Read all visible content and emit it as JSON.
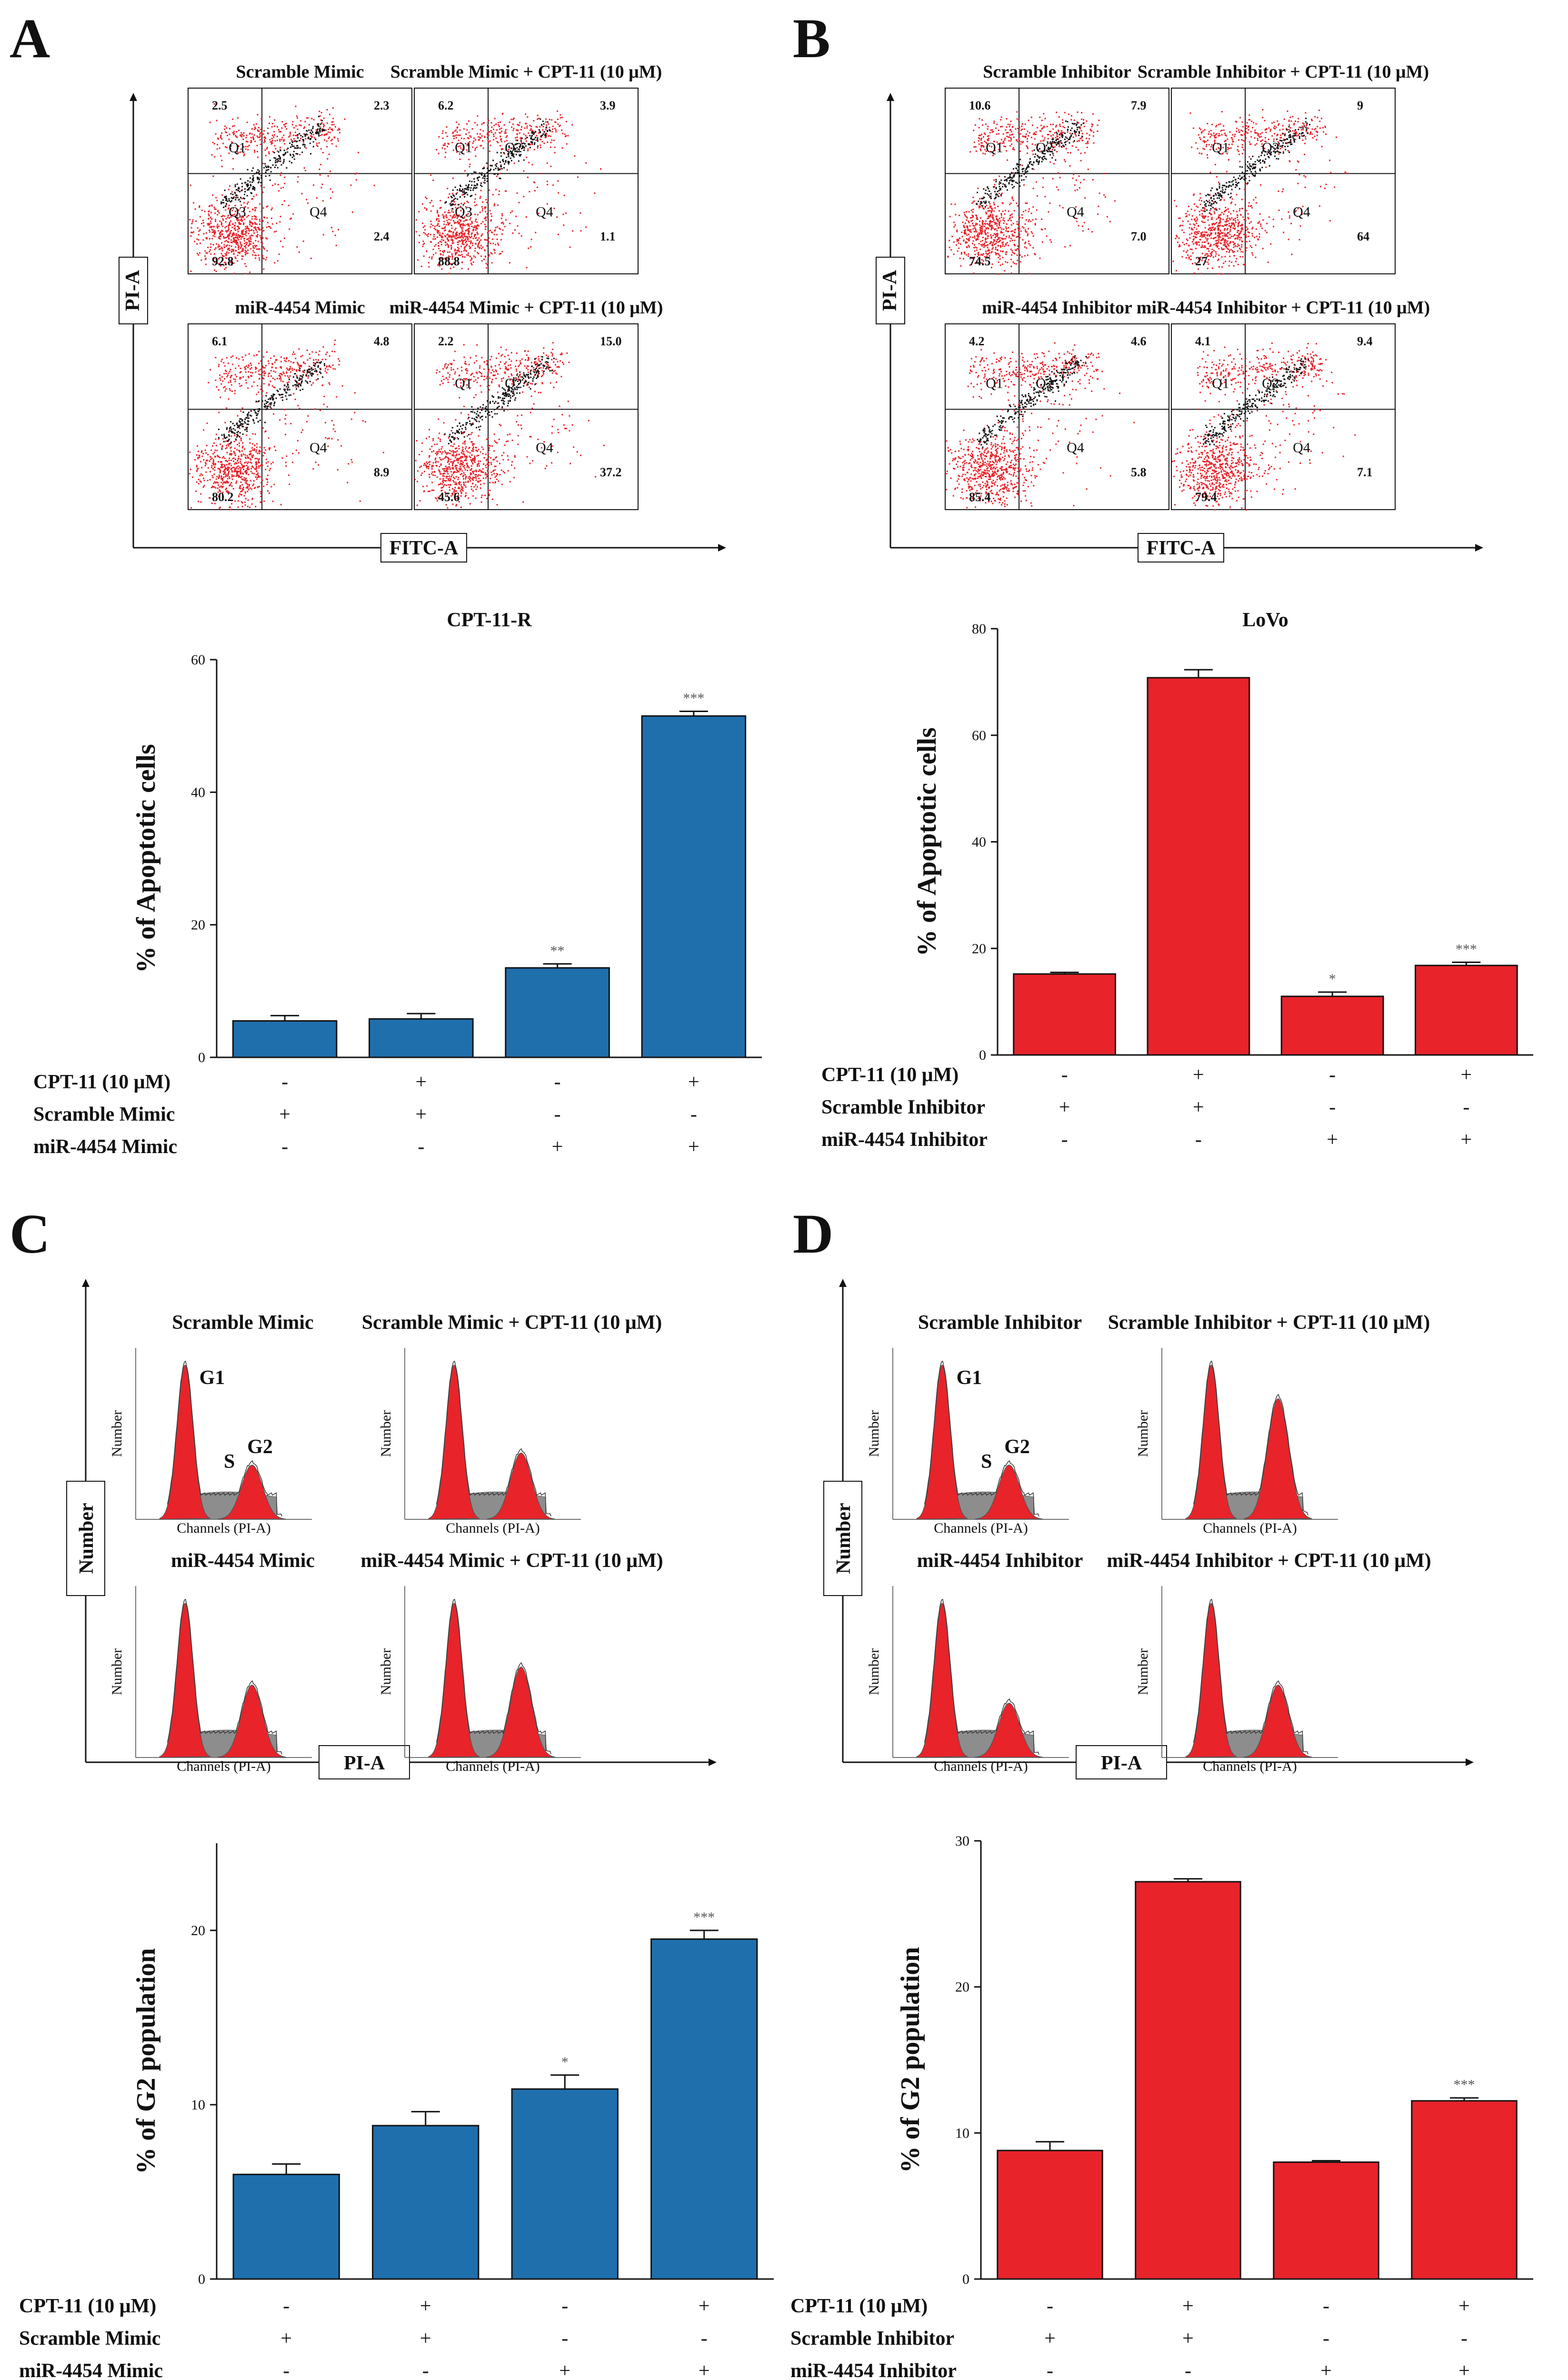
{
  "colors": {
    "blue": "#1f6fad",
    "red": "#e8232a",
    "gray": "#8d8d8d",
    "black": "#111111"
  },
  "panels": {
    "A": {
      "letter": "A",
      "axis_x": "FITC-A",
      "axis_y": "PI-A",
      "plots": [
        {
          "title": "Scramble Mimic",
          "q1": "2.5",
          "q2": "2.3",
          "q3": "92.8",
          "q4": "2.4",
          "labels": [
            "Q1",
            "Q3",
            "Q4"
          ]
        },
        {
          "title": "Scramble Mimic + CPT-11 (10 μM)",
          "q1": "6.2",
          "q2": "3.9",
          "q3": "88.8",
          "q4": "1.1",
          "labels": [
            "Q1",
            "Q2",
            "Q3",
            "Q4"
          ]
        },
        {
          "title": "miR-4454 Mimic",
          "q1": "6.1",
          "q2": "4.8",
          "q3": "80.2",
          "q4": "8.9",
          "labels": [
            "Q4"
          ]
        },
        {
          "title": "miR-4454 Mimic + CPT-11 (10 μM)",
          "q1": "2.2",
          "q2": "15.0",
          "q3": "45.6",
          "q4": "37.2",
          "labels": [
            "Q1",
            "Q2",
            "Q4"
          ]
        }
      ]
    },
    "B": {
      "letter": "B",
      "axis_x": "FITC-A",
      "axis_y": "PI-A",
      "plots": [
        {
          "title": "Scramble Inhibitor",
          "q1": "10.6",
          "q2": "7.9",
          "q3": "74.5",
          "q4": "7.0",
          "labels": [
            "Q1",
            "Q2",
            "Q4"
          ]
        },
        {
          "title": "Scramble Inhibitor + CPT-11 (10 μM)",
          "q1": "",
          "q2": "9",
          "q3": "27",
          "q4": "64",
          "labels": [
            "Q1",
            "Q2",
            "Q4"
          ]
        },
        {
          "title": "miR-4454 Inhibitor",
          "q1": "4.2",
          "q2": "4.6",
          "q3": "85.4",
          "q4": "5.8",
          "labels": [
            "Q1",
            "Q2",
            "Q4"
          ]
        },
        {
          "title": "miR-4454 Inhibitor + CPT-11 (10 μM)",
          "q1": "4.1",
          "q2": "9.4",
          "q3": "79.4",
          "q4": "7.1",
          "labels": [
            "Q1",
            "Q2",
            "Q4"
          ]
        }
      ]
    },
    "C": {
      "letter": "C",
      "axis_x": "PI-A",
      "axis_y": "Number",
      "mini_xlabel": "Channels (PI-A)",
      "mini_ylabel": "Number",
      "peak_labels": {
        "g1": "G1",
        "s": "S",
        "g2": "G2"
      },
      "plots": [
        {
          "title": "Scramble Mimic",
          "g2_size": 0.45
        },
        {
          "title": "Scramble Mimic + CPT-11 (10 μM)",
          "g2_size": 0.55
        },
        {
          "title": "miR-4454 Mimic",
          "g2_size": 0.6
        },
        {
          "title": "miR-4454 Mimic + CPT-11 (10 μM)",
          "g2_size": 0.75
        }
      ]
    },
    "D": {
      "letter": "D",
      "axis_x": "PI-A",
      "axis_y": "Number",
      "mini_xlabel": "Channels (PI-A)",
      "mini_ylabel": "Number",
      "peak_labels": {
        "g1": "G1",
        "s": "S",
        "g2": "G2"
      },
      "plots": [
        {
          "title": "Scramble Inhibitor",
          "g2_size": 0.45
        },
        {
          "title": "Scramble Inhibitor + CPT-11 (10 μM)",
          "g2_size": 1.0
        },
        {
          "title": "miR-4454 Inhibitor",
          "g2_size": 0.45
        },
        {
          "title": "miR-4454 Inhibitor + CPT-11 (10 μM)",
          "g2_size": 0.6
        }
      ]
    }
  },
  "chart_data": [
    {
      "id": "apoptosis-cpt11r",
      "type": "bar",
      "title": "CPT-11-R",
      "ylabel": "% of Apoptotic cells",
      "ylim": [
        0,
        60
      ],
      "yticks": [
        0,
        20,
        40,
        60
      ],
      "categories": [
        "1",
        "2",
        "3",
        "4"
      ],
      "values": [
        5.5,
        5.8,
        13.5,
        51.5
      ],
      "errors": [
        0.8,
        0.8,
        0.6,
        0.7
      ],
      "significance": [
        "",
        "",
        "**",
        "***"
      ],
      "color": "#1f6fad",
      "treatments": [
        {
          "label": "CPT-11 (10 μM)",
          "signs": [
            "-",
            "+",
            "-",
            "+"
          ]
        },
        {
          "label": "Scramble Mimic",
          "signs": [
            "+",
            "+",
            "-",
            "-"
          ]
        },
        {
          "label": "miR-4454 Mimic",
          "signs": [
            "-",
            "-",
            "+",
            "+"
          ]
        }
      ]
    },
    {
      "id": "apoptosis-lovo",
      "type": "bar",
      "title": "LoVo",
      "ylabel": "% of Apoptotic cells",
      "ylim": [
        0,
        80
      ],
      "yticks": [
        0,
        20,
        40,
        60,
        80
      ],
      "categories": [
        "1",
        "2",
        "3",
        "4"
      ],
      "values": [
        15.2,
        70.8,
        11.0,
        16.8
      ],
      "errors": [
        0.3,
        1.5,
        0.8,
        0.6
      ],
      "significance": [
        "",
        "",
        "*",
        "***"
      ],
      "color": "#e8232a",
      "treatments": [
        {
          "label": "CPT-11 (10 μM)",
          "signs": [
            "-",
            "+",
            "-",
            "+"
          ]
        },
        {
          "label": "Scramble Inhibitor",
          "signs": [
            "+",
            "+",
            "-",
            "-"
          ]
        },
        {
          "label": "miR-4454 Inhibitor",
          "signs": [
            "-",
            "-",
            "+",
            "+"
          ]
        }
      ]
    },
    {
      "id": "g2-mimic",
      "type": "bar",
      "title": "",
      "ylabel": "% of G2 population",
      "ylim": [
        0,
        25
      ],
      "yticks": [
        0,
        10,
        20
      ],
      "categories": [
        "1",
        "2",
        "3",
        "4"
      ],
      "values": [
        6.0,
        8.8,
        10.9,
        19.5
      ],
      "errors": [
        0.6,
        0.8,
        0.8,
        0.5
      ],
      "significance": [
        "",
        "",
        "*",
        "***"
      ],
      "color": "#1f6fad",
      "treatments": [
        {
          "label": "CPT-11 (10 μM)",
          "signs": [
            "-",
            "+",
            "-",
            "+"
          ]
        },
        {
          "label": "Scramble Mimic",
          "signs": [
            "+",
            "+",
            "-",
            "-"
          ]
        },
        {
          "label": "miR-4454 Mimic",
          "signs": [
            "-",
            "-",
            "+",
            "+"
          ]
        }
      ]
    },
    {
      "id": "g2-inhibitor",
      "type": "bar",
      "title": "",
      "ylabel": "% of G2 population",
      "ylim": [
        0,
        30
      ],
      "yticks": [
        0,
        10,
        20,
        30
      ],
      "categories": [
        "1",
        "2",
        "3",
        "4"
      ],
      "values": [
        8.8,
        27.2,
        8.0,
        12.2
      ],
      "errors": [
        0.6,
        0.2,
        0.1,
        0.2
      ],
      "significance": [
        "",
        "",
        "",
        "***"
      ],
      "color": "#e8232a",
      "treatments": [
        {
          "label": "CPT-11 (10 μM)",
          "signs": [
            "-",
            "+",
            "-",
            "+"
          ]
        },
        {
          "label": "Scramble Inhibitor",
          "signs": [
            "+",
            "+",
            "-",
            "-"
          ]
        },
        {
          "label": "miR-4454 Inhibitor",
          "signs": [
            "-",
            "-",
            "+",
            "+"
          ]
        }
      ]
    }
  ]
}
